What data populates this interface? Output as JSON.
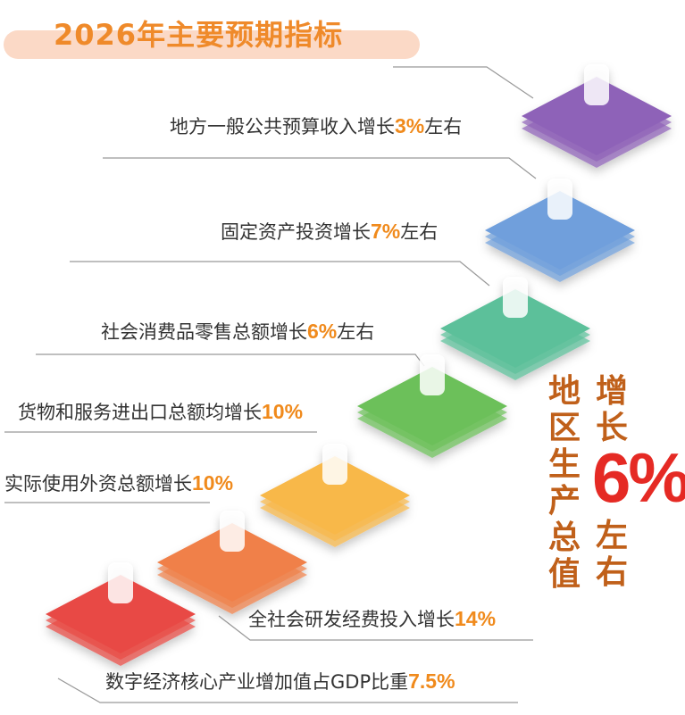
{
  "title": "2026年主要预期指标",
  "items": [
    {
      "text": "地方一般公共预算收入增长",
      "value": "3%",
      "suffix": "左右",
      "icon": "yuan-icon",
      "color": "#8e62b8"
    },
    {
      "text": "固定资产投资增长",
      "value": "7%",
      "suffix": "左右",
      "icon": "bar-chart-icon",
      "color": "#6f9fdc"
    },
    {
      "text": "社会消费品零售总额增长",
      "value": "6%",
      "suffix": "左右",
      "icon": "shopping-tag-icon",
      "color": "#5cc09a"
    },
    {
      "text": "货物和服务进出口总额均增长",
      "value": "10%",
      "suffix": "",
      "icon": "gear-icon",
      "color": "#6cc05a"
    },
    {
      "text": "实际使用外资总额增长",
      "value": "10%",
      "suffix": "",
      "icon": "magnifier-icon",
      "color": "#f8b84a"
    },
    {
      "text": "全社会研发经费投入增长",
      "value": "14%",
      "suffix": "",
      "icon": "lightbulb-icon",
      "color": "#f0804a"
    },
    {
      "text": "数字经济核心产业增加值占GDP比重",
      "value": "7.5%",
      "suffix": "",
      "icon": "house-icon",
      "color": "#e84a44"
    }
  ],
  "gdp": {
    "label": "地区生产总值",
    "prefix": "增长",
    "value": "6%",
    "suffix": "左右"
  }
}
